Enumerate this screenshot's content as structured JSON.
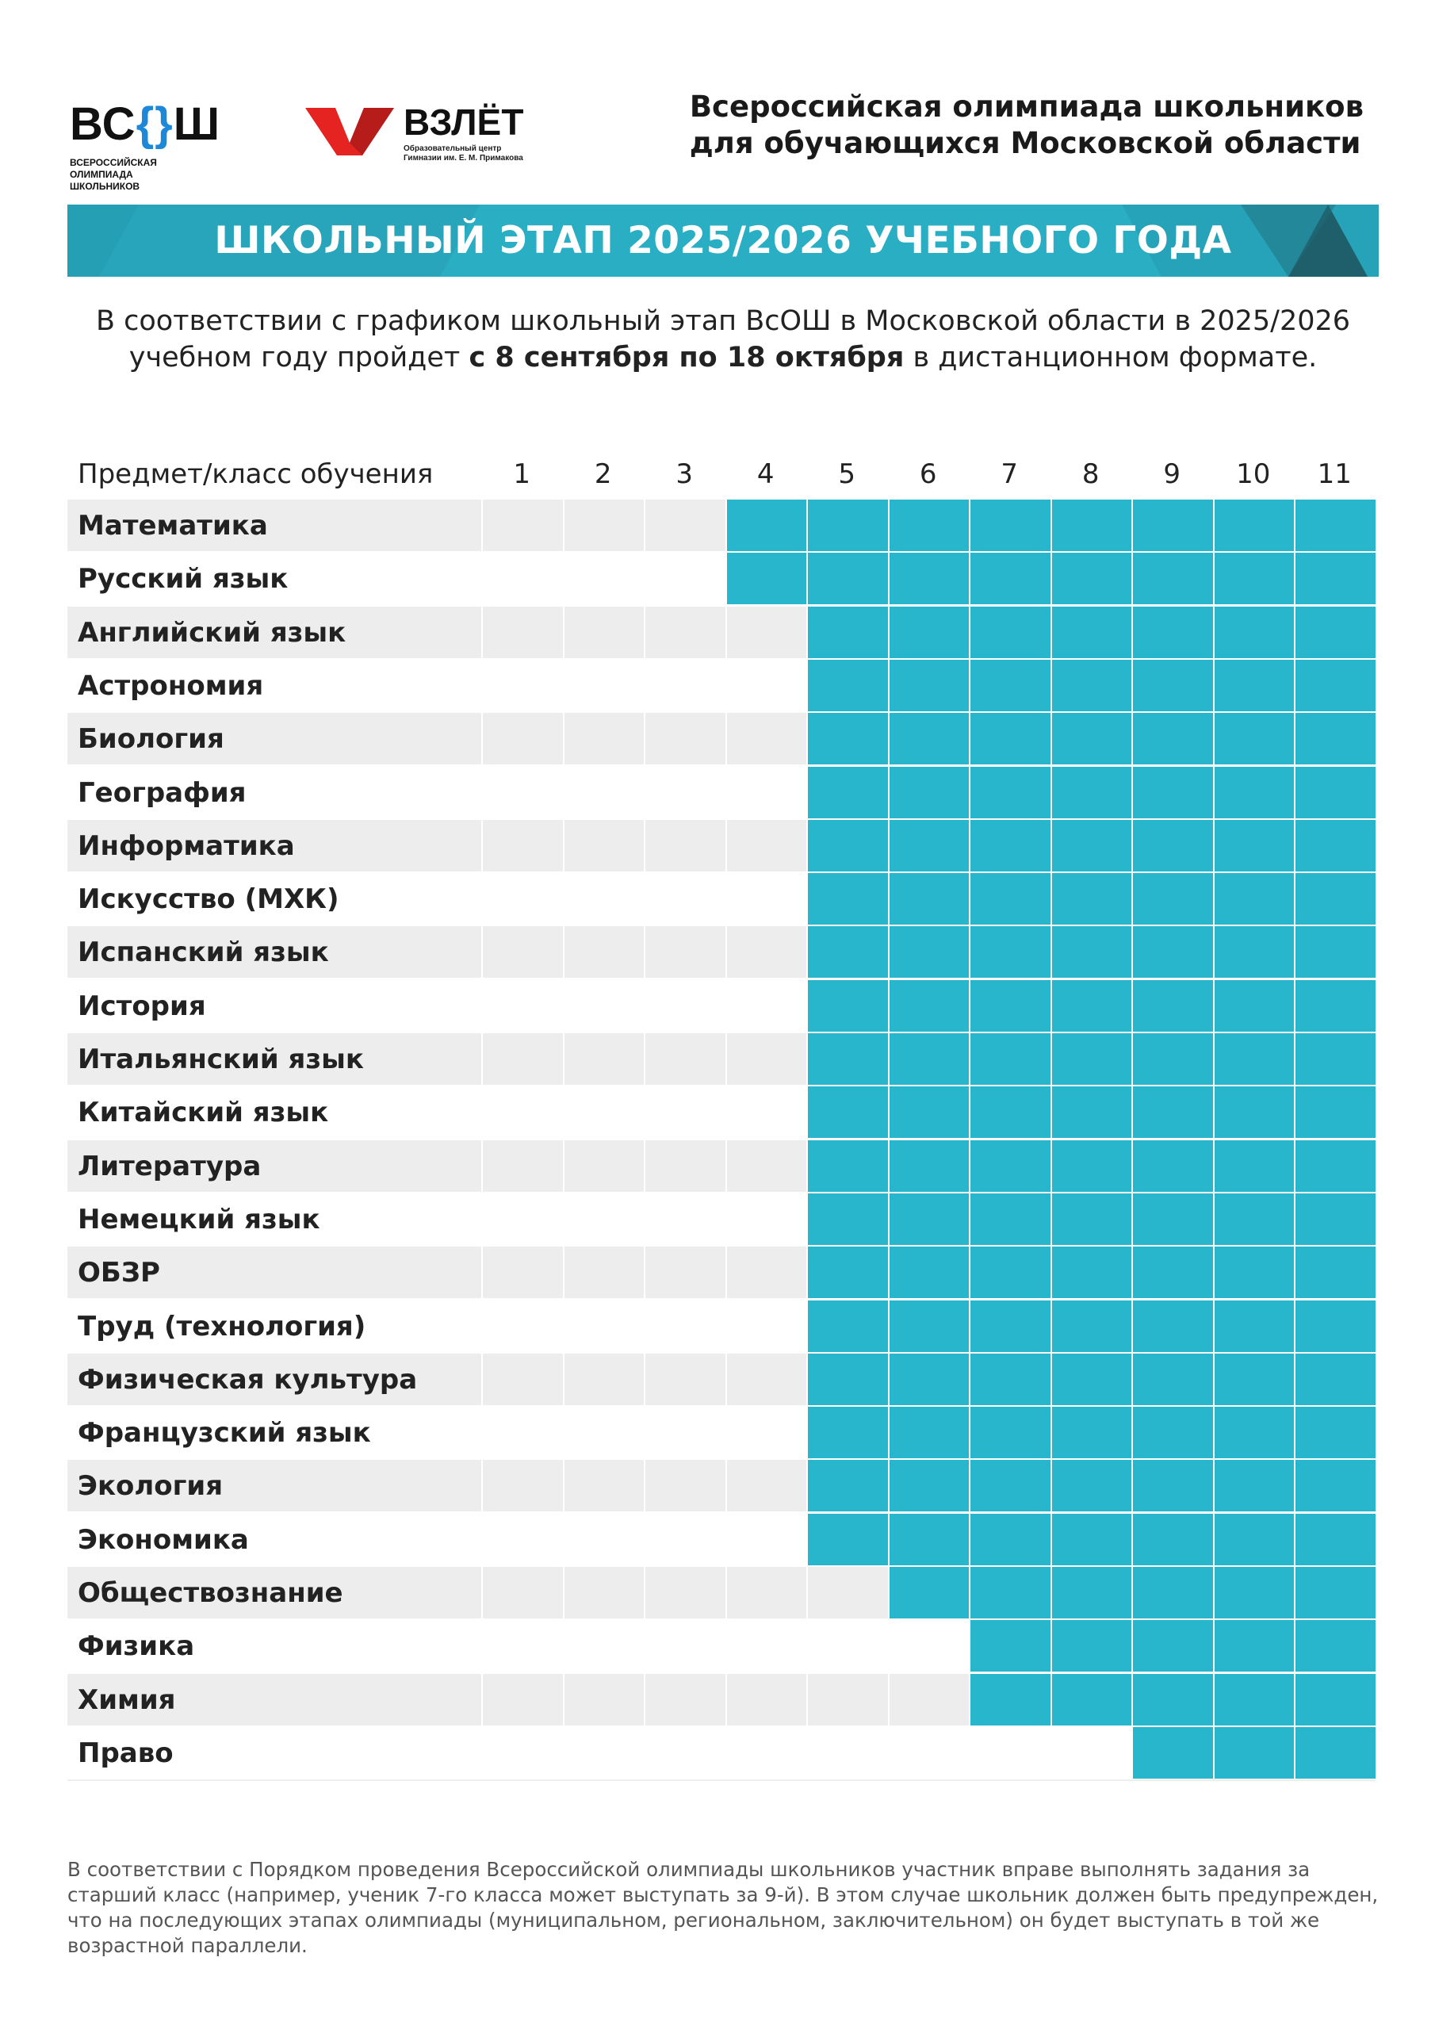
{
  "logos": {
    "vsosh": {
      "mark": "ВСОШ",
      "caption": [
        "ВСЕРОССИЙСКАЯ",
        "ОЛИМПИАДА",
        "ШКОЛЬНИКОВ"
      ]
    },
    "vzlet": {
      "name": "ВЗЛЁТ",
      "caption": [
        "Образовательный центр",
        "Гимназии им. Е. М. Примакова"
      ]
    }
  },
  "header": {
    "title_lines": [
      "Всероссийская олимпиада школьников",
      "для обучающихся Московской области"
    ]
  },
  "banner": {
    "title": "ШКОЛЬНЫЙ ЭТАП 2025/2026 УЧЕБНОГО ГОДА"
  },
  "intro": {
    "before": "В соответствии с графиком школьный этап ВсОШ в Московской области в 2025/2026 учебном году пройдет ",
    "bold": "с 8 сентября по 18 октября",
    "after": " в дистанционном формате."
  },
  "table": {
    "header_label": "Предмет/класс обучения",
    "grades": [
      "1",
      "2",
      "3",
      "4",
      "5",
      "6",
      "7",
      "8",
      "9",
      "10",
      "11"
    ],
    "rows": [
      {
        "subject": "Математика",
        "from_grade": 4
      },
      {
        "subject": "Русский язык",
        "from_grade": 4
      },
      {
        "subject": "Английский язык",
        "from_grade": 5
      },
      {
        "subject": "Астрономия",
        "from_grade": 5
      },
      {
        "subject": "Биология",
        "from_grade": 5
      },
      {
        "subject": "География",
        "from_grade": 5
      },
      {
        "subject": "Информатика",
        "from_grade": 5
      },
      {
        "subject": "Искусство (МХК)",
        "from_grade": 5
      },
      {
        "subject": "Испанский язык",
        "from_grade": 5
      },
      {
        "subject": "История",
        "from_grade": 5
      },
      {
        "subject": "Итальянский язык",
        "from_grade": 5
      },
      {
        "subject": "Китайский язык",
        "from_grade": 5
      },
      {
        "subject": "Литература",
        "from_grade": 5
      },
      {
        "subject": "Немецкий язык",
        "from_grade": 5
      },
      {
        "subject": "ОБЗР",
        "from_grade": 5
      },
      {
        "subject": "Труд (технология)",
        "from_grade": 5
      },
      {
        "subject": "Физическая культура",
        "from_grade": 5
      },
      {
        "subject": "Французский язык",
        "from_grade": 5
      },
      {
        "subject": "Экология",
        "from_grade": 5
      },
      {
        "subject": "Экономика",
        "from_grade": 5
      },
      {
        "subject": "Обществознание",
        "from_grade": 6
      },
      {
        "subject": "Физика",
        "from_grade": 7
      },
      {
        "subject": "Химия",
        "from_grade": 7
      },
      {
        "subject": "Право",
        "from_grade": 9
      }
    ]
  },
  "footnote": "В соответствии с Порядком проведения Всероссийской олимпиады школьников участник вправе выполнять задания за старший класс (например, ученик 7-го класса может выступать за 9-й). В этом случае школьник должен быть предупрежден, что на последующих этапах олимпиады (муниципальном, региональном, заключительном) он будет выступать в той же возрастной параллели.",
  "colors": {
    "active": "#27b6cc",
    "stripe": "#ededed",
    "banner": "#2aaec4",
    "vsosh_accent": "#1e88d8",
    "vzlet_red": "#e52421"
  }
}
